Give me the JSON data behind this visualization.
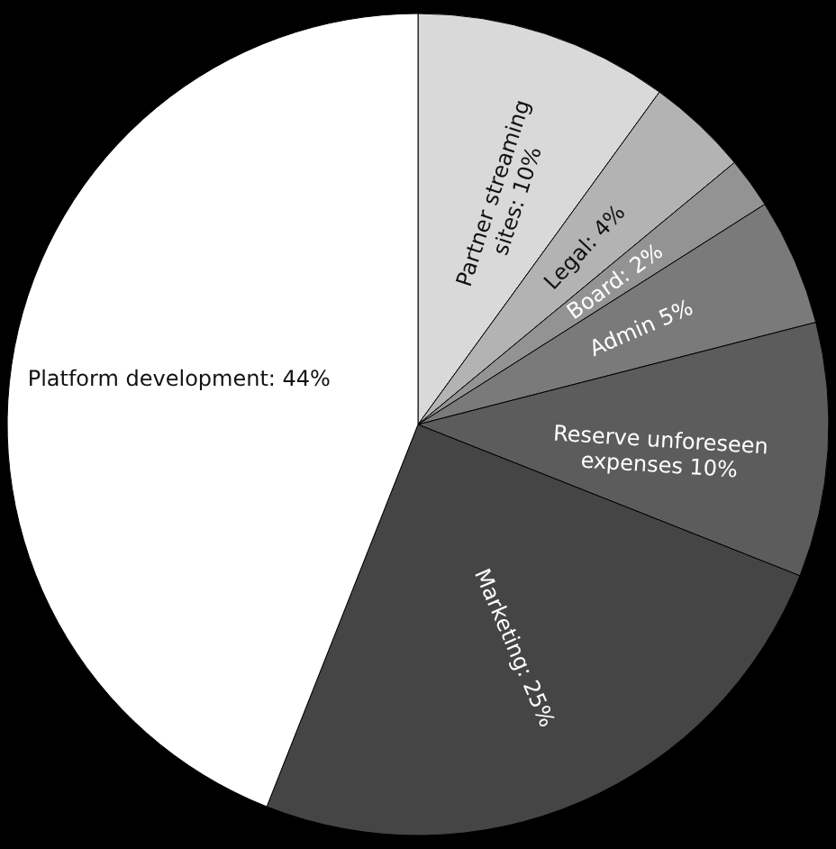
{
  "chart_data": {
    "type": "pie",
    "categories": [
      "Partner streaming sites: 10%",
      "Legal: 4%",
      "Board: 2%",
      "Admin 5%",
      "Reserve unforeseen expenses 10%",
      "Marketing: 25%",
      "Platform development: 44%"
    ],
    "values": [
      10,
      4,
      2,
      5,
      10,
      25,
      44
    ],
    "colors": [
      "#d9d9d9",
      "#b3b3b3",
      "#939393",
      "#7a7a7a",
      "#5c5c5c",
      "#454545",
      "#ffffff"
    ]
  }
}
